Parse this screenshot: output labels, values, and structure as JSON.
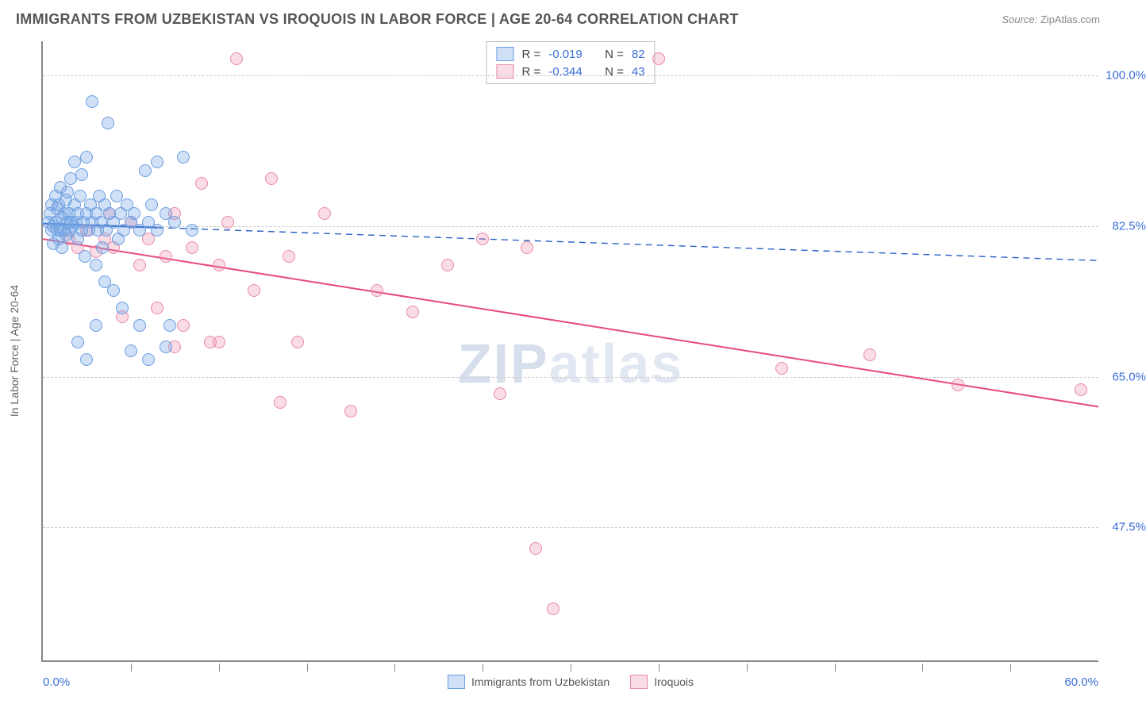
{
  "title": "IMMIGRANTS FROM UZBEKISTAN VS IROQUOIS IN LABOR FORCE | AGE 20-64 CORRELATION CHART",
  "source_label": "Source:",
  "source_value": "ZipAtlas.com",
  "watermark_a": "ZIP",
  "watermark_b": "atlas",
  "y_axis_title": "In Labor Force | Age 20-64",
  "chart": {
    "type": "scatter_with_regression",
    "xlim": [
      0,
      60
    ],
    "ylim": [
      32,
      104
    ],
    "x_min_label": "0.0%",
    "x_max_label": "60.0%",
    "x_tick_step": 5,
    "y_ticks": [
      100.0,
      82.5,
      65.0,
      47.5
    ],
    "y_tick_labels": [
      "100.0%",
      "82.5%",
      "65.0%",
      "47.5%"
    ],
    "grid_color": "#cccccc",
    "axis_color": "#888888",
    "background_color": "#ffffff",
    "tick_label_color": "#3b6fd6",
    "tick_fontsize": 15,
    "axis_title_fontsize": 14,
    "axis_title_color": "#666666",
    "marker_radius": 8,
    "marker_border_width": 1.5
  },
  "series": {
    "uzbekistan": {
      "label": "Immigrants from Uzbekistan",
      "fill_color": "rgba(120,165,230,0.35)",
      "border_color": "#6a9de0",
      "line_color": "#2b5fc7",
      "line_dash": true,
      "line_width": 1.4,
      "R": "-0.019",
      "N": "82",
      "reg_line": {
        "x1": 0,
        "y1": 82.8,
        "x2": 60,
        "y2": 78.5
      },
      "solid_segment": {
        "x1": 0,
        "x2": 6.5
      },
      "points": [
        [
          0.3,
          83
        ],
        [
          0.4,
          84
        ],
        [
          0.5,
          82
        ],
        [
          0.5,
          85
        ],
        [
          0.6,
          82.5
        ],
        [
          0.6,
          80.5
        ],
        [
          0.7,
          83
        ],
        [
          0.7,
          86
        ],
        [
          0.8,
          82
        ],
        [
          0.8,
          84.5
        ],
        [
          0.9,
          81
        ],
        [
          0.9,
          85
        ],
        [
          1.0,
          82
        ],
        [
          1.0,
          87
        ],
        [
          1.1,
          83.5
        ],
        [
          1.1,
          80
        ],
        [
          1.2,
          84
        ],
        [
          1.2,
          82
        ],
        [
          1.3,
          85.5
        ],
        [
          1.3,
          81.5
        ],
        [
          1.4,
          83
        ],
        [
          1.4,
          86.5
        ],
        [
          1.5,
          82
        ],
        [
          1.5,
          84
        ],
        [
          1.6,
          83
        ],
        [
          1.6,
          88
        ],
        [
          1.7,
          82.5
        ],
        [
          1.8,
          85
        ],
        [
          1.8,
          90
        ],
        [
          1.9,
          83
        ],
        [
          2.0,
          84
        ],
        [
          2.0,
          81
        ],
        [
          2.1,
          86
        ],
        [
          2.2,
          82
        ],
        [
          2.2,
          88.5
        ],
        [
          2.3,
          83
        ],
        [
          2.4,
          79
        ],
        [
          2.5,
          84
        ],
        [
          2.5,
          90.5
        ],
        [
          2.6,
          82
        ],
        [
          2.7,
          85
        ],
        [
          2.8,
          83
        ],
        [
          2.8,
          97
        ],
        [
          3.0,
          84
        ],
        [
          3.0,
          78
        ],
        [
          3.1,
          82
        ],
        [
          3.2,
          86
        ],
        [
          3.3,
          83
        ],
        [
          3.4,
          80
        ],
        [
          3.5,
          85
        ],
        [
          3.5,
          76
        ],
        [
          3.6,
          82
        ],
        [
          3.7,
          94.5
        ],
        [
          3.8,
          84
        ],
        [
          4.0,
          83
        ],
        [
          4.0,
          75
        ],
        [
          4.2,
          86
        ],
        [
          4.3,
          81
        ],
        [
          4.4,
          84
        ],
        [
          4.5,
          73
        ],
        [
          4.6,
          82
        ],
        [
          4.8,
          85
        ],
        [
          5.0,
          83
        ],
        [
          5.0,
          68
        ],
        [
          5.2,
          84
        ],
        [
          5.5,
          82
        ],
        [
          5.5,
          71
        ],
        [
          5.8,
          89
        ],
        [
          6.0,
          83
        ],
        [
          6.0,
          67
        ],
        [
          6.2,
          85
        ],
        [
          6.5,
          82
        ],
        [
          6.5,
          90
        ],
        [
          7.0,
          84
        ],
        [
          7.0,
          68.5
        ],
        [
          7.2,
          71
        ],
        [
          7.5,
          83
        ],
        [
          8.0,
          90.5
        ],
        [
          8.5,
          82
        ],
        [
          2.0,
          69
        ],
        [
          2.5,
          67
        ],
        [
          3.0,
          71
        ]
      ]
    },
    "iroquois": {
      "label": "Iroquois",
      "fill_color": "rgba(240,140,170,0.30)",
      "border_color": "#e88aa8",
      "line_color": "#e74a7a",
      "line_dash": false,
      "line_width": 2.0,
      "R": "-0.344",
      "N": "43",
      "reg_line": {
        "x1": 0,
        "y1": 81.0,
        "x2": 60,
        "y2": 61.5
      },
      "points": [
        [
          1.5,
          81
        ],
        [
          2.0,
          80
        ],
        [
          2.5,
          82
        ],
        [
          3.0,
          79.5
        ],
        [
          3.5,
          81
        ],
        [
          3.8,
          84
        ],
        [
          4.0,
          80
        ],
        [
          4.5,
          72
        ],
        [
          5.0,
          83
        ],
        [
          5.5,
          78
        ],
        [
          6.0,
          81
        ],
        [
          6.5,
          73
        ],
        [
          7.0,
          79
        ],
        [
          7.5,
          84
        ],
        [
          8.0,
          71
        ],
        [
          8.5,
          80
        ],
        [
          9.0,
          87.5
        ],
        [
          9.5,
          69
        ],
        [
          10.0,
          78
        ],
        [
          10.5,
          83
        ],
        [
          11.0,
          102
        ],
        [
          12.0,
          75
        ],
        [
          13.0,
          88
        ],
        [
          13.5,
          62
        ],
        [
          14.0,
          79
        ],
        [
          14.5,
          69
        ],
        [
          16.0,
          84
        ],
        [
          17.5,
          61
        ],
        [
          19.0,
          75
        ],
        [
          21.0,
          72.5
        ],
        [
          23.0,
          78
        ],
        [
          25.0,
          81
        ],
        [
          26.0,
          63
        ],
        [
          27.5,
          80
        ],
        [
          28.0,
          45
        ],
        [
          29.0,
          38
        ],
        [
          35.0,
          102
        ],
        [
          42.0,
          66
        ],
        [
          47.0,
          67.5
        ],
        [
          52.0,
          64
        ],
        [
          59.0,
          63.5
        ],
        [
          7.5,
          68.5
        ],
        [
          10.0,
          69
        ]
      ]
    }
  },
  "stats_box": {
    "R_label": "R =",
    "N_label": "N ="
  }
}
